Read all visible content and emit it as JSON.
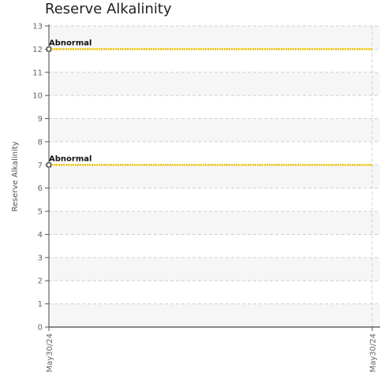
{
  "chart_data": {
    "type": "line",
    "title": "Reserve Alkalinity",
    "xlabel": "",
    "ylabel": "Reserve Alkalinity",
    "ylim": [
      0,
      13
    ],
    "y_ticks": [
      0,
      1,
      2,
      3,
      4,
      5,
      6,
      7,
      8,
      9,
      10,
      11,
      12,
      13
    ],
    "x_ticks": [
      "May30/24",
      "May30/24"
    ],
    "grid": true,
    "series": [
      {
        "values": [
          12,
          12
        ],
        "color": "#f2c500",
        "label": "Abnormal"
      },
      {
        "values": [
          7,
          7
        ],
        "color": "#f2c500",
        "label": "Abnormal"
      }
    ]
  }
}
